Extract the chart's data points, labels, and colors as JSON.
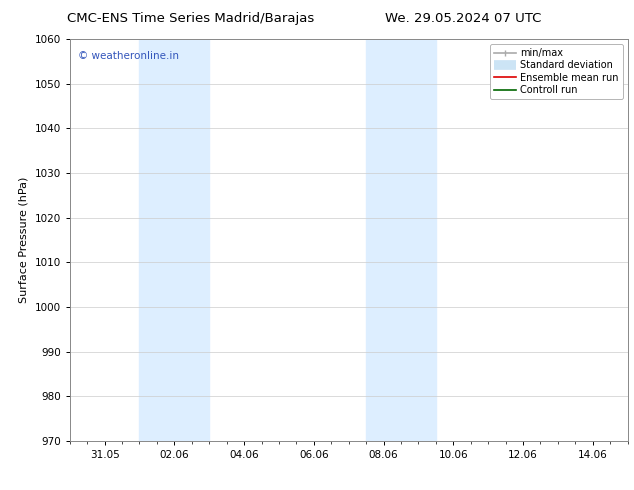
{
  "title_left": "CMC-ENS Time Series Madrid/Barajas",
  "title_right": "We. 29.05.2024 07 UTC",
  "ylabel": "Surface Pressure (hPa)",
  "ylim": [
    970,
    1060
  ],
  "yticks": [
    970,
    980,
    990,
    1000,
    1010,
    1020,
    1030,
    1040,
    1050,
    1060
  ],
  "xlim": [
    0,
    16
  ],
  "xtick_labels": [
    "31.05",
    "02.06",
    "04.06",
    "06.06",
    "08.06",
    "10.06",
    "12.06",
    "14.06"
  ],
  "xtick_positions": [
    1,
    3,
    5,
    7,
    9,
    11,
    13,
    15
  ],
  "shaded_bands": [
    {
      "x_start": 2.0,
      "x_end": 4.0,
      "color": "#ddeeff"
    },
    {
      "x_start": 8.5,
      "x_end": 10.5,
      "color": "#ddeeff"
    }
  ],
  "watermark_text": "© weatheronline.in",
  "watermark_color": "#3355bb",
  "legend_items": [
    {
      "label": "min/max",
      "color": "#aaaaaa",
      "lw": 1.2
    },
    {
      "label": "Standard deviation",
      "color": "#cce4f5",
      "lw": 7
    },
    {
      "label": "Ensemble mean run",
      "color": "#dd0000",
      "lw": 1.2
    },
    {
      "label": "Controll run",
      "color": "#006600",
      "lw": 1.2
    }
  ],
  "background_color": "#ffffff",
  "grid_color": "#cccccc",
  "title_fontsize": 9.5,
  "axis_label_fontsize": 8,
  "tick_fontsize": 7.5,
  "watermark_fontsize": 7.5,
  "legend_fontsize": 7
}
